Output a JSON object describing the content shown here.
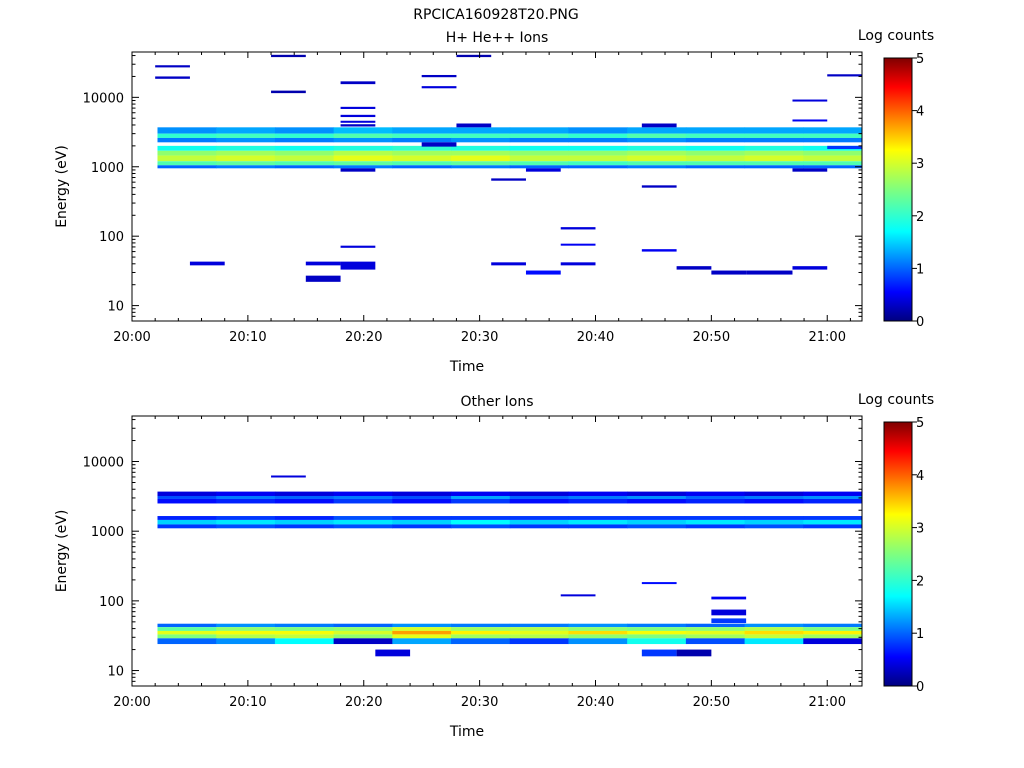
{
  "figure": {
    "title": "RPCICA160928T20.PNG"
  },
  "colormap": {
    "stops": [
      {
        "v": 0.0,
        "c": "#00007f"
      },
      {
        "v": 0.11,
        "c": "#0000ff"
      },
      {
        "v": 0.34,
        "c": "#00ffff"
      },
      {
        "v": 0.5,
        "c": "#7fff7f"
      },
      {
        "v": 0.65,
        "c": "#ffff00"
      },
      {
        "v": 0.89,
        "c": "#ff0000"
      },
      {
        "v": 1.0,
        "c": "#7f0000"
      }
    ]
  },
  "chart_data": [
    {
      "type": "heatmap",
      "title": "H+ He++ Ions",
      "xlabel": "Time",
      "ylabel": "Energy (eV)",
      "yscale": "log",
      "xlim": [
        "20:00",
        "21:03"
      ],
      "ylim": [
        6,
        45000
      ],
      "xticks": [
        "20:00",
        "20:10",
        "20:20",
        "20:30",
        "20:40",
        "20:50",
        "21:00"
      ],
      "yticks": [
        "10",
        "100",
        "1000",
        "10000"
      ],
      "colorbar": {
        "label": "Log counts",
        "range": [
          0,
          5
        ],
        "ticks": [
          "0",
          "1",
          "2",
          "3",
          "4",
          "5"
        ]
      },
      "persistent_bands": [
        {
          "e_low": 3000,
          "e_high": 3700,
          "log_counts": [
            1.2,
            1.3,
            1.2,
            1.4,
            1.3,
            1.3,
            1.3,
            1.2,
            1.3,
            1.3,
            1.3,
            1.3
          ]
        },
        {
          "e_low": 2600,
          "e_high": 3000,
          "log_counts": [
            2.0,
            2.1,
            2.0,
            2.2,
            2.1,
            2.1,
            2.1,
            2.0,
            2.2,
            2.1,
            2.1,
            2.1
          ]
        },
        {
          "e_low": 2250,
          "e_high": 2600,
          "log_counts": [
            1.1,
            1.2,
            1.1,
            1.2,
            1.1,
            1.2,
            1.1,
            1.1,
            1.2,
            1.1,
            1.1,
            1.1
          ]
        },
        {
          "e_low": 1700,
          "e_high": 2000,
          "log_counts": [
            1.8,
            1.9,
            1.8,
            1.9,
            2.0,
            1.9,
            1.8,
            1.8,
            1.9,
            1.8,
            1.9,
            1.8
          ]
        },
        {
          "e_low": 1450,
          "e_high": 1700,
          "log_counts": [
            2.6,
            2.7,
            2.6,
            2.8,
            2.7,
            2.7,
            2.6,
            2.6,
            2.7,
            2.6,
            2.7,
            2.6
          ]
        },
        {
          "e_low": 1200,
          "e_high": 1450,
          "log_counts": [
            2.9,
            3.0,
            2.9,
            3.1,
            3.0,
            3.1,
            2.9,
            2.9,
            3.0,
            2.9,
            3.0,
            2.9
          ]
        },
        {
          "e_low": 1050,
          "e_high": 1200,
          "log_counts": [
            2.2,
            2.3,
            2.2,
            2.3,
            2.2,
            2.3,
            2.2,
            2.1,
            2.2,
            2.2,
            2.2,
            2.2
          ]
        },
        {
          "e_low": 950,
          "e_high": 1050,
          "log_counts": [
            1.0,
            1.1,
            1.0,
            1.1,
            1.0,
            1.1,
            1.0,
            1.0,
            1.1,
            1.0,
            1.0,
            1.0
          ]
        }
      ],
      "sparse_bins": [
        {
          "t": "20:02-20:05",
          "e_low": 27000,
          "e_high": 29000,
          "log_counts": 0.3
        },
        {
          "t": "20:02-20:05",
          "e_low": 18500,
          "e_high": 20000,
          "log_counts": 0.3
        },
        {
          "t": "20:12-20:15",
          "e_low": 38000,
          "e_high": 41000,
          "log_counts": 0.2
        },
        {
          "t": "20:12-20:15",
          "e_low": 11500,
          "e_high": 12500,
          "log_counts": 0.2
        },
        {
          "t": "20:18-20:21",
          "e_low": 15500,
          "e_high": 17000,
          "log_counts": 0.3
        },
        {
          "t": "20:18-20:21",
          "e_low": 6800,
          "e_high": 7300,
          "log_counts": 0.4
        },
        {
          "t": "20:18-20:21",
          "e_low": 5200,
          "e_high": 5600,
          "log_counts": 0.4
        },
        {
          "t": "20:18-20:21",
          "e_low": 4300,
          "e_high": 4600,
          "log_counts": 0.4
        },
        {
          "t": "20:18-20:21",
          "e_low": 3800,
          "e_high": 4100,
          "log_counts": 0.3
        },
        {
          "t": "20:18-20:21",
          "e_low": 68,
          "e_high": 73,
          "log_counts": 0.4
        },
        {
          "t": "20:18-20:21",
          "e_low": 33,
          "e_high": 43,
          "log_counts": 0.4
        },
        {
          "t": "20:18-20:21",
          "e_low": 850,
          "e_high": 950,
          "log_counts": 0.3
        },
        {
          "t": "20:25-20:28",
          "e_low": 19500,
          "e_high": 21000,
          "log_counts": 0.3
        },
        {
          "t": "20:25-20:28",
          "e_low": 13500,
          "e_high": 14500,
          "log_counts": 0.4
        },
        {
          "t": "20:25-20:28",
          "e_low": 1950,
          "e_high": 2250,
          "log_counts": 0.3
        },
        {
          "t": "20:28-20:31",
          "e_low": 38000,
          "e_high": 41000,
          "log_counts": 0.2
        },
        {
          "t": "20:28-20:31",
          "e_low": 3700,
          "e_high": 4200,
          "log_counts": 0.3
        },
        {
          "t": "20:05-20:08",
          "e_low": 38,
          "e_high": 43,
          "log_counts": 0.4
        },
        {
          "t": "20:15-20:18",
          "e_low": 38,
          "e_high": 43,
          "log_counts": 0.4
        },
        {
          "t": "20:15-20:18",
          "e_low": 22,
          "e_high": 27,
          "log_counts": 0.3
        },
        {
          "t": "20:31-20:34",
          "e_low": 38,
          "e_high": 42,
          "log_counts": 0.4
        },
        {
          "t": "20:31-20:34",
          "e_low": 630,
          "e_high": 680,
          "log_counts": 0.3
        },
        {
          "t": "20:34-20:37",
          "e_low": 28,
          "e_high": 32,
          "log_counts": 0.6
        },
        {
          "t": "20:34-20:37",
          "e_low": 850,
          "e_high": 950,
          "log_counts": 0.4
        },
        {
          "t": "20:37-20:40",
          "e_low": 125,
          "e_high": 135,
          "log_counts": 0.4
        },
        {
          "t": "20:37-20:40",
          "e_low": 73,
          "e_high": 78,
          "log_counts": 0.5
        },
        {
          "t": "20:37-20:40",
          "e_low": 38,
          "e_high": 42,
          "log_counts": 0.4
        },
        {
          "t": "20:44-20:47",
          "e_low": 3700,
          "e_high": 4200,
          "log_counts": 0.3
        },
        {
          "t": "20:44-20:47",
          "e_low": 500,
          "e_high": 540,
          "log_counts": 0.3
        },
        {
          "t": "20:44-20:47",
          "e_low": 60,
          "e_high": 65,
          "log_counts": 0.5
        },
        {
          "t": "20:47-20:50",
          "e_low": 33,
          "e_high": 37,
          "log_counts": 0.3
        },
        {
          "t": "20:50-20:53",
          "e_low": 28,
          "e_high": 32,
          "log_counts": 0.3
        },
        {
          "t": "20:53-20:57",
          "e_low": 28,
          "e_high": 32,
          "log_counts": 0.3
        },
        {
          "t": "20:57-21:00",
          "e_low": 8700,
          "e_high": 9300,
          "log_counts": 0.4
        },
        {
          "t": "20:57-21:00",
          "e_low": 4500,
          "e_high": 4800,
          "log_counts": 0.5
        },
        {
          "t": "20:57-21:00",
          "e_low": 33,
          "e_high": 37,
          "log_counts": 0.4
        },
        {
          "t": "20:57-21:00",
          "e_low": 850,
          "e_high": 950,
          "log_counts": 0.3
        },
        {
          "t": "21:00-21:03",
          "e_low": 20000,
          "e_high": 21500,
          "log_counts": 0.3
        },
        {
          "t": "21:00-21:03",
          "e_low": 1800,
          "e_high": 2000,
          "log_counts": 0.8
        }
      ]
    },
    {
      "type": "heatmap",
      "title": "Other Ions",
      "xlabel": "Time",
      "ylabel": "Energy (eV)",
      "yscale": "log",
      "xlim": [
        "20:00",
        "21:03"
      ],
      "ylim": [
        6,
        45000
      ],
      "xticks": [
        "20:00",
        "20:10",
        "20:20",
        "20:30",
        "20:40",
        "20:50",
        "21:00"
      ],
      "yticks": [
        "10",
        "100",
        "1000",
        "10000"
      ],
      "colorbar": {
        "label": "Log counts",
        "range": [
          0,
          5
        ],
        "ticks": [
          "0",
          "1",
          "2",
          "3",
          "4",
          "5"
        ]
      },
      "persistent_bands": [
        {
          "e_low": 3200,
          "e_high": 3700,
          "log_counts": [
            0.4,
            0.5,
            0.4,
            0.5,
            0.4,
            0.5,
            0.4,
            0.5,
            0.4,
            0.5,
            0.4,
            0.5
          ]
        },
        {
          "e_low": 2900,
          "e_high": 3200,
          "log_counts": [
            0.9,
            1.1,
            1.0,
            1.1,
            0.9,
            1.3,
            1.0,
            1.1,
            1.2,
            1.0,
            1.1,
            1.2
          ]
        },
        {
          "e_low": 2500,
          "e_high": 2900,
          "log_counts": [
            0.6,
            0.7,
            0.6,
            0.8,
            0.6,
            0.8,
            0.6,
            0.7,
            0.6,
            0.7,
            0.6,
            0.7
          ]
        },
        {
          "e_low": 1450,
          "e_high": 1650,
          "log_counts": [
            0.7,
            0.8,
            0.7,
            0.9,
            0.8,
            0.8,
            0.8,
            0.8,
            0.8,
            0.8,
            0.8,
            0.8
          ]
        },
        {
          "e_low": 1250,
          "e_high": 1450,
          "log_counts": [
            1.5,
            1.6,
            1.5,
            1.6,
            1.5,
            1.7,
            1.5,
            1.6,
            1.5,
            1.6,
            1.5,
            1.6
          ]
        },
        {
          "e_low": 1100,
          "e_high": 1250,
          "log_counts": [
            0.8,
            0.9,
            0.8,
            0.9,
            0.8,
            0.9,
            0.8,
            0.8,
            0.9,
            0.8,
            0.9,
            0.8
          ]
        },
        {
          "e_low": 42,
          "e_high": 47,
          "log_counts": [
            1.0,
            1.2,
            1.1,
            1.0,
            1.2,
            1.1,
            1.1,
            1.2,
            1.1,
            1.0,
            1.2,
            1.1
          ]
        },
        {
          "e_low": 37,
          "e_high": 42,
          "log_counts": [
            2.3,
            2.6,
            2.5,
            2.6,
            3.0,
            2.7,
            2.8,
            2.6,
            2.5,
            2.6,
            2.8,
            2.5
          ]
        },
        {
          "e_low": 33,
          "e_high": 37,
          "log_counts": [
            3.1,
            3.2,
            3.2,
            3.0,
            3.7,
            3.3,
            3.1,
            3.4,
            3.2,
            3.1,
            3.4,
            3.3
          ]
        },
        {
          "e_low": 29,
          "e_high": 33,
          "log_counts": [
            2.5,
            2.8,
            2.9,
            2.6,
            3.1,
            2.7,
            2.8,
            2.6,
            2.5,
            2.7,
            2.9,
            2.7
          ]
        },
        {
          "e_low": 24,
          "e_high": 29,
          "log_counts": [
            1.0,
            1.2,
            1.7,
            0.3,
            1.3,
            1.0,
            0.8,
            1.2,
            1.8,
            0.9,
            1.6,
            0.4
          ]
        }
      ],
      "sparse_bins": [
        {
          "t": "20:12-20:15",
          "e_low": 5900,
          "e_high": 6300,
          "log_counts": 0.4
        },
        {
          "t": "20:37-20:40",
          "e_low": 117,
          "e_high": 124,
          "log_counts": 0.4
        },
        {
          "t": "20:44-20:47",
          "e_low": 178,
          "e_high": 186,
          "log_counts": 0.6
        },
        {
          "t": "20:50-20:53",
          "e_low": 105,
          "e_high": 115,
          "log_counts": 0.5
        },
        {
          "t": "20:50-20:53",
          "e_low": 62,
          "e_high": 75,
          "log_counts": 0.4
        },
        {
          "t": "20:50-20:53",
          "e_low": 48,
          "e_high": 56,
          "log_counts": 0.8
        },
        {
          "t": "20:21-20:24",
          "e_low": 16,
          "e_high": 20,
          "log_counts": 0.4
        },
        {
          "t": "20:44-20:47",
          "e_low": 16,
          "e_high": 20,
          "log_counts": 0.8
        },
        {
          "t": "20:47-20:50",
          "e_low": 16,
          "e_high": 20,
          "log_counts": 0.2
        }
      ]
    }
  ]
}
